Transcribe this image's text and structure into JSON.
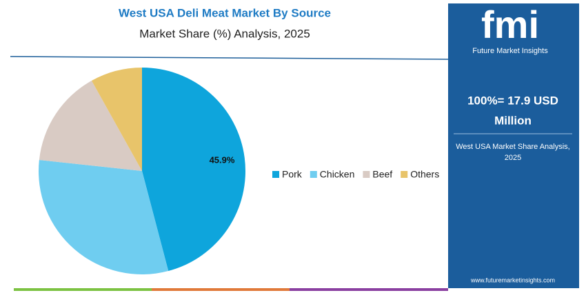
{
  "chart_data": {
    "type": "pie",
    "title": "West USA Deli Meat Market By Source",
    "subtitle": "Market Share (%) Analysis, 2025",
    "categories": [
      "Pork",
      "Chicken",
      "Beef",
      "Others"
    ],
    "values": [
      45.9,
      30.8,
      15.2,
      8.1
    ],
    "value_labels": [
      "45.9%",
      null,
      null,
      null
    ],
    "colors": [
      "#0ea5dc",
      "#6fcdf0",
      "#d9cbc4",
      "#e8c46a"
    ],
    "legend": "right"
  },
  "panel": {
    "logo": "fmi",
    "logo_sub": "Future Market Insights",
    "headline": [
      "100%= 17.9 USD",
      "Million"
    ],
    "caption": [
      "West USA Market Share Analysis,",
      "2025"
    ],
    "url": "www.futuremarketinsights.com"
  }
}
